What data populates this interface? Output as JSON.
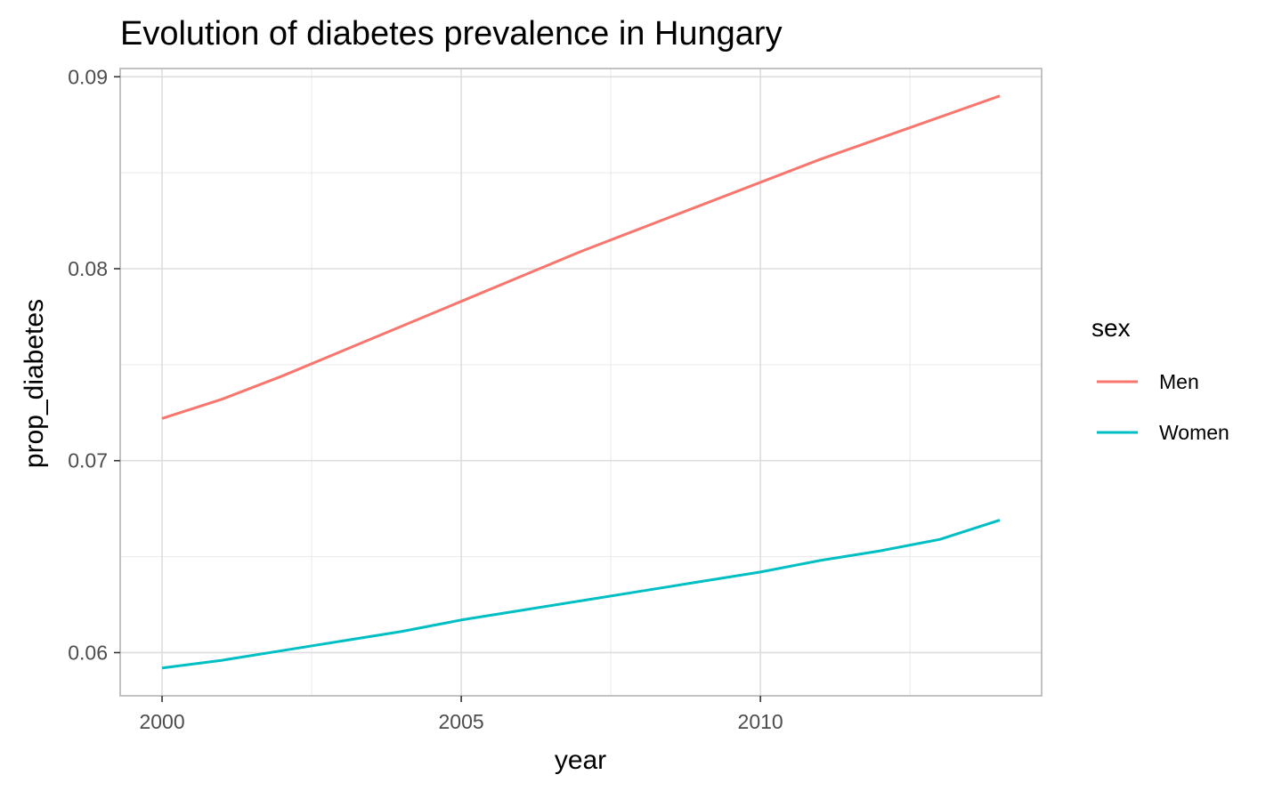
{
  "chart_data": {
    "type": "line",
    "title": "Evolution of diabetes prevalence in Hungary",
    "xlabel": "year",
    "ylabel": "prop_diabetes",
    "xlim": [
      1999.3,
      2014.7
    ],
    "ylim": [
      0.05775,
      0.09043
    ],
    "x_ticks": [
      2000,
      2005,
      2010
    ],
    "x_tick_labels": [
      "2000",
      "2005",
      "2010"
    ],
    "y_ticks": [
      0.06,
      0.07,
      0.08,
      0.09
    ],
    "y_tick_labels": [
      "0.06",
      "0.07",
      "0.08",
      "0.09"
    ],
    "grid": true,
    "legend": {
      "title": "sex",
      "placement": "right"
    },
    "x": [
      2000,
      2001,
      2002,
      2003,
      2004,
      2005,
      2006,
      2007,
      2008,
      2009,
      2010,
      2011,
      2012,
      2013,
      2014
    ],
    "series": [
      {
        "name": "Men",
        "color": "#F8766D",
        "values": [
          0.0722,
          0.0732,
          0.0744,
          0.0757,
          0.077,
          0.0783,
          0.0796,
          0.0809,
          0.0821,
          0.0833,
          0.0845,
          0.0857,
          0.0868,
          0.0879,
          0.089
        ]
      },
      {
        "name": "Women",
        "color": "#00BFC4",
        "values": [
          0.0592,
          0.0596,
          0.0601,
          0.0606,
          0.0611,
          0.0617,
          0.0622,
          0.0627,
          0.0632,
          0.0637,
          0.0642,
          0.0648,
          0.0653,
          0.0659,
          0.0669
        ]
      }
    ]
  }
}
